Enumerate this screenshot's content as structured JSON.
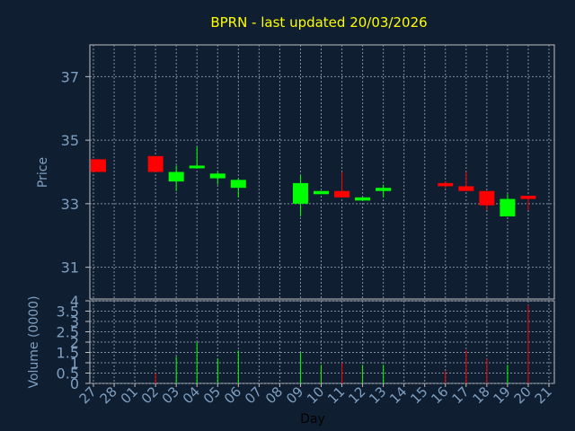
{
  "chart_data": [
    {
      "type": "candlestick",
      "title": "BPRN - last updated 20/03/2026",
      "ylabel": "Price",
      "xlabel": "",
      "ylim": [
        30.0,
        38.0
      ],
      "yticks": [
        31,
        33,
        35,
        37
      ],
      "x": [
        "27",
        "28",
        "01",
        "02",
        "03",
        "04",
        "05",
        "06",
        "07",
        "08",
        "09",
        "10",
        "11",
        "12",
        "13",
        "14",
        "15",
        "16",
        "17",
        "18",
        "19",
        "20",
        "21"
      ],
      "candles": [
        {
          "day": "27",
          "open": 34.4,
          "close": 34.0,
          "high": 34.4,
          "low": 34.0
        },
        {
          "day": "02",
          "open": 34.5,
          "close": 34.0,
          "high": 34.5,
          "low": 34.0
        },
        {
          "day": "03",
          "open": 33.7,
          "close": 34.0,
          "high": 34.2,
          "low": 33.4
        },
        {
          "day": "04",
          "open": 34.15,
          "close": 34.2,
          "high": 34.8,
          "low": 34.1
        },
        {
          "day": "05",
          "open": 33.8,
          "close": 33.95,
          "high": 34.0,
          "low": 33.6
        },
        {
          "day": "06",
          "open": 33.5,
          "close": 33.75,
          "high": 33.8,
          "low": 33.2
        },
        {
          "day": "09",
          "open": 33.0,
          "close": 33.65,
          "high": 33.9,
          "low": 32.6
        },
        {
          "day": "10",
          "open": 33.3,
          "close": 33.4,
          "high": 33.4,
          "low": 33.3
        },
        {
          "day": "11",
          "open": 33.4,
          "close": 33.2,
          "high": 34.0,
          "low": 33.2
        },
        {
          "day": "12",
          "open": 33.1,
          "close": 33.2,
          "high": 33.2,
          "low": 33.1
        },
        {
          "day": "13",
          "open": 33.4,
          "close": 33.5,
          "high": 33.6,
          "low": 33.2
        },
        {
          "day": "16",
          "open": 33.65,
          "close": 33.55,
          "high": 33.7,
          "low": 33.5
        },
        {
          "day": "17",
          "open": 33.55,
          "close": 33.4,
          "high": 34.0,
          "low": 33.4
        },
        {
          "day": "18",
          "open": 33.4,
          "close": 32.95,
          "high": 33.4,
          "low": 32.8
        },
        {
          "day": "19",
          "open": 32.6,
          "close": 33.15,
          "high": 33.3,
          "low": 32.6
        },
        {
          "day": "20",
          "open": 33.25,
          "close": 33.15,
          "high": 33.25,
          "low": 32.8
        }
      ]
    },
    {
      "type": "bar",
      "title": "",
      "ylabel": "Volume (0000)",
      "xlabel": "Day",
      "ylim": [
        0,
        4
      ],
      "yticks": [
        "0",
        "0.5",
        "1",
        "1.5",
        "2",
        "2.5",
        "3",
        "3.5",
        "4"
      ],
      "x": [
        "27",
        "28",
        "01",
        "02",
        "03",
        "04",
        "05",
        "06",
        "07",
        "08",
        "09",
        "10",
        "11",
        "12",
        "13",
        "14",
        "15",
        "16",
        "17",
        "18",
        "19",
        "20",
        "21"
      ],
      "bars": [
        {
          "day": "02",
          "value": 0.5,
          "direction": "down"
        },
        {
          "day": "03",
          "value": 1.3,
          "direction": "up"
        },
        {
          "day": "04",
          "value": 2.0,
          "direction": "up"
        },
        {
          "day": "05",
          "value": 1.2,
          "direction": "up"
        },
        {
          "day": "06",
          "value": 1.6,
          "direction": "up"
        },
        {
          "day": "09",
          "value": 1.5,
          "direction": "up"
        },
        {
          "day": "10",
          "value": 0.9,
          "direction": "up"
        },
        {
          "day": "11",
          "value": 1.0,
          "direction": "down"
        },
        {
          "day": "12",
          "value": 0.9,
          "direction": "up"
        },
        {
          "day": "13",
          "value": 0.9,
          "direction": "up"
        },
        {
          "day": "16",
          "value": 0.6,
          "direction": "down"
        },
        {
          "day": "17",
          "value": 1.6,
          "direction": "down"
        },
        {
          "day": "18",
          "value": 1.2,
          "direction": "down"
        },
        {
          "day": "19",
          "value": 0.9,
          "direction": "up"
        },
        {
          "day": "20",
          "value": 3.8,
          "direction": "down"
        }
      ]
    }
  ],
  "colors": {
    "background": "#0f1e30",
    "title": "#ffff00",
    "axis_text": "#7f9fc0",
    "axis_line": "#c0c0c0",
    "grid": "#8090a0",
    "up": "#00ff00",
    "down": "#ff0000"
  }
}
